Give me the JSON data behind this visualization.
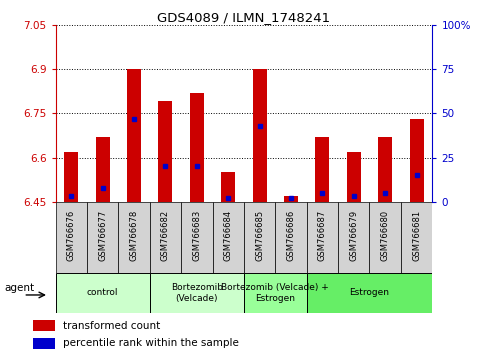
{
  "title": "GDS4089 / ILMN_1748241",
  "samples": [
    "GSM766676",
    "GSM766677",
    "GSM766678",
    "GSM766682",
    "GSM766683",
    "GSM766684",
    "GSM766685",
    "GSM766686",
    "GSM766687",
    "GSM766679",
    "GSM766680",
    "GSM766681"
  ],
  "transformed_count": [
    6.62,
    6.67,
    6.9,
    6.79,
    6.82,
    6.55,
    6.9,
    6.47,
    6.67,
    6.62,
    6.67,
    6.73
  ],
  "percentile_rank": [
    3,
    8,
    47,
    20,
    20,
    2,
    43,
    2,
    5,
    3,
    5,
    15
  ],
  "ymin": 6.45,
  "ymax": 7.05,
  "yticks": [
    6.45,
    6.6,
    6.75,
    6.9,
    7.05
  ],
  "ytick_labels": [
    "6.45",
    "6.6",
    "6.75",
    "6.9",
    "7.05"
  ],
  "right_yticks": [
    0,
    25,
    50,
    75,
    100
  ],
  "right_ytick_labels": [
    "0",
    "25",
    "50",
    "75",
    "100%"
  ],
  "bar_color": "#cc0000",
  "marker_color": "#0000cc",
  "groups": [
    {
      "label": "control",
      "start": 0,
      "end": 3,
      "color": "#ccffcc"
    },
    {
      "label": "Bortezomib\n(Velcade)",
      "start": 3,
      "end": 6,
      "color": "#ccffcc"
    },
    {
      "label": "Bortezomib (Velcade) +\nEstrogen",
      "start": 6,
      "end": 8,
      "color": "#99ff99"
    },
    {
      "label": "Estrogen",
      "start": 8,
      "end": 12,
      "color": "#66ee66"
    }
  ],
  "bar_width": 0.45,
  "sample_box_color": "#d3d3d3",
  "figure_bg": "#ffffff"
}
